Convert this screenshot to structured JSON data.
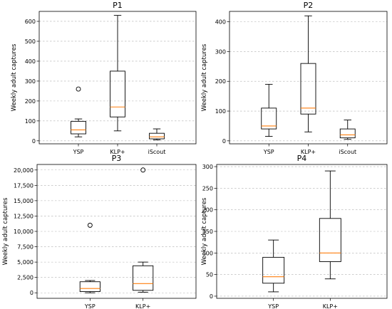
{
  "chart_data": [
    {
      "type": "box",
      "title": "P1",
      "xlabel": "",
      "ylabel": "Weekly adult captures",
      "ylim": [
        -15,
        650
      ],
      "yticks": [
        0,
        100,
        200,
        300,
        400,
        500,
        600
      ],
      "ytick_labels": [
        "0",
        "100",
        "200",
        "300",
        "400",
        "500",
        "600"
      ],
      "grid": "y-dashed",
      "categories": [
        "YSP",
        "KLP+",
        "iScout"
      ],
      "boxes": [
        {
          "min": 20,
          "q1": 35,
          "median": 55,
          "q3": 98,
          "max": 110,
          "outliers": [
            260
          ]
        },
        {
          "min": 50,
          "q1": 120,
          "median": 170,
          "q3": 350,
          "max": 630,
          "outliers": []
        },
        {
          "min": 5,
          "q1": 10,
          "median": 20,
          "q3": 38,
          "max": 60,
          "outliers": []
        }
      ]
    },
    {
      "type": "box",
      "title": "P2",
      "xlabel": "",
      "ylabel": "Weekly adult captures",
      "ylim": [
        -10,
        435
      ],
      "yticks": [
        0,
        100,
        200,
        300,
        400
      ],
      "ytick_labels": [
        "0",
        "100",
        "200",
        "300",
        "400"
      ],
      "grid": "y-dashed",
      "categories": [
        "YSP",
        "KLP+",
        "iScout"
      ],
      "boxes": [
        {
          "min": 15,
          "q1": 40,
          "median": 50,
          "q3": 110,
          "max": 190,
          "outliers": []
        },
        {
          "min": 30,
          "q1": 90,
          "median": 110,
          "q3": 260,
          "max": 420,
          "outliers": []
        },
        {
          "min": 5,
          "q1": 10,
          "median": 20,
          "q3": 40,
          "max": 70,
          "outliers": []
        }
      ]
    },
    {
      "type": "box",
      "title": "P3",
      "xlabel": "",
      "ylabel": "Weekly adult captures",
      "ylim": [
        -900,
        20900
      ],
      "yticks": [
        0,
        2500,
        5000,
        7500,
        10000,
        12500,
        15000,
        17500,
        20000
      ],
      "ytick_labels": [
        "0",
        "2,500",
        "5,000",
        "7,500",
        "10,000",
        "12,500",
        "15,000",
        "17,500",
        "20,000"
      ],
      "grid": "y-dashed",
      "categories": [
        "YSP",
        "KLP+"
      ],
      "boxes": [
        {
          "min": 0,
          "q1": 200,
          "median": 700,
          "q3": 1800,
          "max": 2000,
          "outliers": [
            11000
          ]
        },
        {
          "min": 100,
          "q1": 400,
          "median": 1500,
          "q3": 4400,
          "max": 5000,
          "outliers": [
            20000
          ]
        }
      ]
    },
    {
      "type": "box",
      "title": "P4",
      "xlabel": "",
      "ylabel": "Weekly adult captures",
      "ylim": [
        -5,
        305
      ],
      "yticks": [
        0,
        50,
        100,
        150,
        200,
        250,
        300
      ],
      "ytick_labels": [
        "0",
        "50",
        "100",
        "150",
        "200",
        "250",
        "300"
      ],
      "grid": "y-dashed",
      "categories": [
        "YSP",
        "KLP+"
      ],
      "boxes": [
        {
          "min": 10,
          "q1": 30,
          "median": 45,
          "q3": 90,
          "max": 130,
          "outliers": []
        },
        {
          "min": 40,
          "q1": 80,
          "median": 100,
          "q3": 180,
          "max": 290,
          "outliers": []
        }
      ]
    }
  ],
  "colors": {
    "median": "#ff7f0e",
    "grid": "#b0b0b0",
    "box": "#000000"
  }
}
